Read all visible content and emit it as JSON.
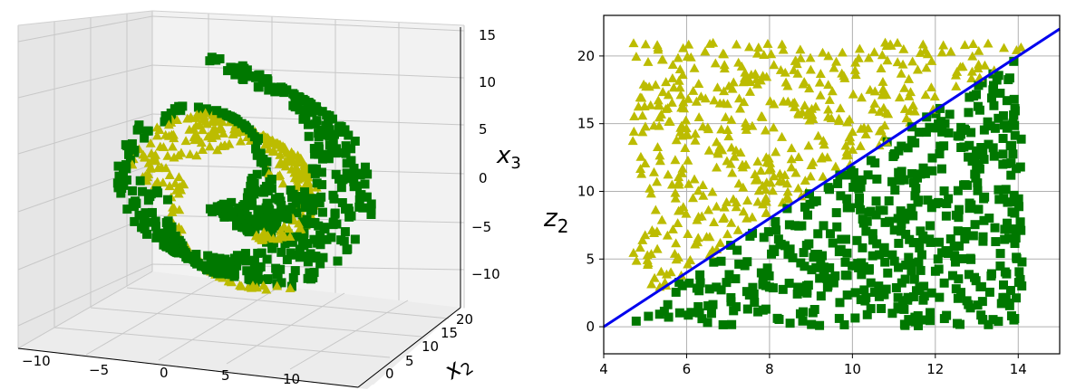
{
  "chart_data": [
    {
      "type": "scatter3d",
      "markers": {
        "triangle": "#bcbc00",
        "square": "#007800"
      },
      "x1_ticks": [
        "−10",
        "−5",
        "0",
        "5",
        "10"
      ],
      "x2_ticks": [
        "0",
        "5",
        "10",
        "15",
        "20"
      ],
      "x3_ticks": [
        "15",
        "10",
        "5",
        "0",
        "−5",
        "−10"
      ],
      "x1lim": [
        -11,
        14
      ],
      "x2lim": [
        0,
        21
      ],
      "x3lim": [
        -12,
        15
      ],
      "x2_label_base": "x",
      "x2_label_sub": "2",
      "x3_label_base": "x",
      "x3_label_sub": "3",
      "grid": true
    },
    {
      "type": "scatter",
      "xlim": [
        4,
        15
      ],
      "ylim": [
        -2,
        23
      ],
      "xticks": [
        "4",
        "6",
        "8",
        "10",
        "12",
        "14"
      ],
      "yticks": [
        "0",
        "5",
        "10",
        "15",
        "20"
      ],
      "ylabel_base": "z",
      "ylabel_sub": "2",
      "grid": true,
      "line": {
        "x": [
          4,
          15
        ],
        "y": [
          0,
          22
        ],
        "color": "#0000ee"
      },
      "series_colors": {
        "above_line_triangles": "#bcbc00",
        "below_line_squares": "#007800"
      },
      "point_count_approx": 1000,
      "x_range_points": [
        4.7,
        14.1
      ],
      "y_range_points": [
        0,
        21
      ]
    }
  ]
}
